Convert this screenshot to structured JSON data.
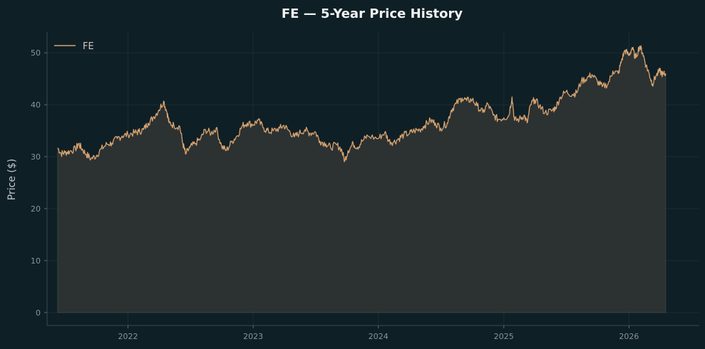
{
  "chart_data": {
    "type": "area",
    "title": "FE — 5-Year Price History",
    "xlabel": "",
    "ylabel": "Price ($)",
    "xlim": [
      "2021-05-10",
      "2026-07-25"
    ],
    "ylim": [
      -2.5,
      54
    ],
    "x_ticks": [
      "2022",
      "2023",
      "2024",
      "2025",
      "2026"
    ],
    "y_ticks": [
      0,
      10,
      20,
      30,
      40,
      50
    ],
    "grid": true,
    "legend": {
      "position": "top-left",
      "entries": [
        "FE"
      ]
    },
    "colors": {
      "line": "#d9a46f",
      "fill": "#2f3333",
      "background": "#0f1f26"
    },
    "series": [
      {
        "name": "FE",
        "points": [
          [
            "2021-06-10",
            31.7
          ],
          [
            "2021-06-20",
            30.6
          ],
          [
            "2021-07-01",
            30.8
          ],
          [
            "2021-07-15",
            31.0
          ],
          [
            "2021-08-01",
            31.5
          ],
          [
            "2021-08-10",
            32.5
          ],
          [
            "2021-08-20",
            31.5
          ],
          [
            "2021-09-01",
            30.5
          ],
          [
            "2021-09-15",
            29.6
          ],
          [
            "2021-10-01",
            30.2
          ],
          [
            "2021-10-15",
            31.5
          ],
          [
            "2021-11-01",
            32.4
          ],
          [
            "2021-11-15",
            32.6
          ],
          [
            "2021-12-01",
            33.5
          ],
          [
            "2021-12-15",
            34.0
          ],
          [
            "2022-01-01",
            34.3
          ],
          [
            "2022-01-20",
            34.6
          ],
          [
            "2022-02-01",
            34.8
          ],
          [
            "2022-02-15",
            35.2
          ],
          [
            "2022-03-01",
            36.5
          ],
          [
            "2022-03-15",
            37.5
          ],
          [
            "2022-04-01",
            39.0
          ],
          [
            "2022-04-15",
            40.7
          ],
          [
            "2022-04-25",
            38.5
          ],
          [
            "2022-05-01",
            36.5
          ],
          [
            "2022-05-15",
            36.0
          ],
          [
            "2022-06-01",
            35.8
          ],
          [
            "2022-06-10",
            32.5
          ],
          [
            "2022-06-18",
            30.5
          ],
          [
            "2022-07-01",
            31.8
          ],
          [
            "2022-07-15",
            32.5
          ],
          [
            "2022-08-01",
            33.5
          ],
          [
            "2022-08-15",
            35.2
          ],
          [
            "2022-09-01",
            34.5
          ],
          [
            "2022-09-15",
            35.5
          ],
          [
            "2022-10-01",
            32.0
          ],
          [
            "2022-10-15",
            31.2
          ],
          [
            "2022-11-01",
            33.0
          ],
          [
            "2022-11-15",
            34.0
          ],
          [
            "2022-12-01",
            36.0
          ],
          [
            "2022-12-15",
            36.5
          ],
          [
            "2023-01-01",
            36.2
          ],
          [
            "2023-01-15",
            37.0
          ],
          [
            "2023-02-01",
            35.5
          ],
          [
            "2023-02-15",
            34.8
          ],
          [
            "2023-03-01",
            35.0
          ],
          [
            "2023-03-20",
            35.5
          ],
          [
            "2023-04-01",
            36.0
          ],
          [
            "2023-04-15",
            35.0
          ],
          [
            "2023-05-01",
            33.8
          ],
          [
            "2023-05-15",
            34.5
          ],
          [
            "2023-06-01",
            35.2
          ],
          [
            "2023-06-15",
            34.5
          ],
          [
            "2023-07-01",
            34.8
          ],
          [
            "2023-07-15",
            33.0
          ],
          [
            "2023-08-01",
            32.5
          ],
          [
            "2023-08-15",
            31.8
          ],
          [
            "2023-09-01",
            32.3
          ],
          [
            "2023-09-15",
            31.5
          ],
          [
            "2023-09-25",
            29.2
          ],
          [
            "2023-10-05",
            31.2
          ],
          [
            "2023-10-20",
            32.5
          ],
          [
            "2023-11-01",
            31.8
          ],
          [
            "2023-11-15",
            33.0
          ],
          [
            "2023-12-01",
            34.0
          ],
          [
            "2024-01-01",
            33.5
          ],
          [
            "2024-01-20",
            34.7
          ],
          [
            "2024-02-01",
            33.0
          ],
          [
            "2024-02-15",
            32.8
          ],
          [
            "2024-03-01",
            33.5
          ],
          [
            "2024-03-15",
            34.2
          ],
          [
            "2024-04-01",
            34.5
          ],
          [
            "2024-04-15",
            35.0
          ],
          [
            "2024-05-01",
            35.2
          ],
          [
            "2024-05-15",
            36.0
          ],
          [
            "2024-06-01",
            37.0
          ],
          [
            "2024-06-15",
            36.5
          ],
          [
            "2024-07-01",
            35.5
          ],
          [
            "2024-07-20",
            36.5
          ],
          [
            "2024-08-01",
            39.0
          ],
          [
            "2024-08-15",
            40.2
          ],
          [
            "2024-09-01",
            41.3
          ],
          [
            "2024-09-15",
            40.8
          ],
          [
            "2024-10-01",
            41.0
          ],
          [
            "2024-10-15",
            39.8
          ],
          [
            "2024-11-01",
            38.5
          ],
          [
            "2024-11-15",
            40.2
          ],
          [
            "2024-12-01",
            38.0
          ],
          [
            "2024-12-15",
            37.2
          ],
          [
            "2025-01-01",
            37.5
          ],
          [
            "2025-01-15",
            37.8
          ],
          [
            "2025-01-25",
            41.5
          ],
          [
            "2025-02-01",
            37.0
          ],
          [
            "2025-02-15",
            37.2
          ],
          [
            "2025-03-01",
            38.0
          ],
          [
            "2025-03-10",
            36.5
          ],
          [
            "2025-03-20",
            40.0
          ],
          [
            "2025-04-01",
            41.0
          ],
          [
            "2025-04-15",
            39.8
          ],
          [
            "2025-05-01",
            38.5
          ],
          [
            "2025-05-20",
            38.8
          ],
          [
            "2025-06-01",
            39.5
          ],
          [
            "2025-06-15",
            41.5
          ],
          [
            "2025-07-01",
            42.5
          ],
          [
            "2025-07-20",
            42.0
          ],
          [
            "2025-08-01",
            42.3
          ],
          [
            "2025-08-15",
            44.5
          ],
          [
            "2025-09-01",
            45.2
          ],
          [
            "2025-09-15",
            45.8
          ],
          [
            "2025-10-01",
            44.5
          ],
          [
            "2025-10-15",
            43.5
          ],
          [
            "2025-11-01",
            44.0
          ],
          [
            "2025-11-15",
            46.5
          ],
          [
            "2025-12-01",
            46.0
          ],
          [
            "2025-12-10",
            48.5
          ],
          [
            "2025-12-20",
            50.5
          ],
          [
            "2026-01-01",
            49.5
          ],
          [
            "2026-01-10",
            51.0
          ],
          [
            "2026-01-20",
            49.0
          ],
          [
            "2026-02-01",
            51.3
          ],
          [
            "2026-02-10",
            50.0
          ],
          [
            "2026-02-20",
            47.5
          ],
          [
            "2026-03-01",
            46.0
          ],
          [
            "2026-03-10",
            44.0
          ],
          [
            "2026-03-20",
            45.5
          ],
          [
            "2026-04-01",
            46.5
          ],
          [
            "2026-04-10",
            45.8
          ],
          [
            "2026-04-18",
            46.0
          ]
        ]
      }
    ]
  }
}
